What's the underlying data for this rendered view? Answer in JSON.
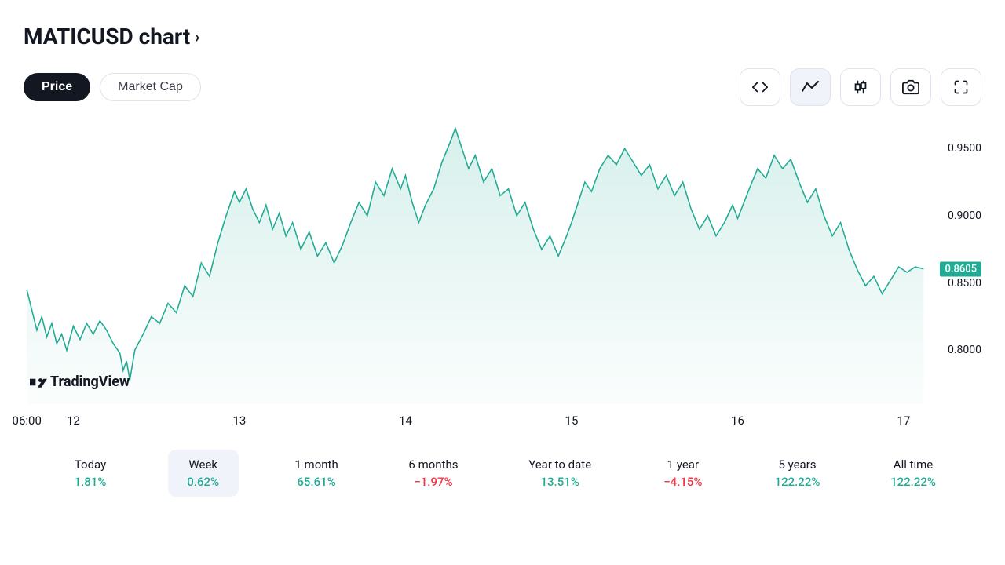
{
  "title": "MATICUSD chart",
  "tabs": {
    "price": "Price",
    "marketcap": "Market Cap"
  },
  "toolbar_icons": [
    "code-icon",
    "area-chart-icon",
    "candlestick-icon",
    "camera-icon",
    "fullscreen-icon"
  ],
  "chart": {
    "type": "area",
    "line_color": "#22ab94",
    "line_width": 1.5,
    "fill_top": "rgba(34,171,148,0.18)",
    "fill_bottom": "rgba(34,171,148,0.02)",
    "background": "#ffffff",
    "xlim": [
      0,
      5.4
    ],
    "ylim": [
      0.76,
      0.97
    ],
    "y_ticks": [
      {
        "v": 0.95,
        "label": "0.9500"
      },
      {
        "v": 0.9,
        "label": "0.9000"
      },
      {
        "v": 0.85,
        "label": "0.8500"
      },
      {
        "v": 0.8,
        "label": "0.8000"
      }
    ],
    "x_ticks": [
      {
        "v": 0.0,
        "label": "06:00"
      },
      {
        "v": 0.28,
        "label": "12"
      },
      {
        "v": 1.28,
        "label": "13"
      },
      {
        "v": 2.28,
        "label": "14"
      },
      {
        "v": 3.28,
        "label": "15"
      },
      {
        "v": 4.28,
        "label": "16"
      },
      {
        "v": 5.28,
        "label": "17"
      }
    ],
    "current_price": 0.8605,
    "current_price_label": "0.8605",
    "series": [
      [
        0.0,
        0.845
      ],
      [
        0.03,
        0.83
      ],
      [
        0.06,
        0.815
      ],
      [
        0.09,
        0.825
      ],
      [
        0.12,
        0.81
      ],
      [
        0.15,
        0.82
      ],
      [
        0.18,
        0.805
      ],
      [
        0.21,
        0.812
      ],
      [
        0.24,
        0.8
      ],
      [
        0.28,
        0.818
      ],
      [
        0.32,
        0.808
      ],
      [
        0.36,
        0.82
      ],
      [
        0.4,
        0.812
      ],
      [
        0.44,
        0.822
      ],
      [
        0.48,
        0.815
      ],
      [
        0.52,
        0.805
      ],
      [
        0.56,
        0.798
      ],
      [
        0.58,
        0.785
      ],
      [
        0.6,
        0.792
      ],
      [
        0.62,
        0.778
      ],
      [
        0.65,
        0.8
      ],
      [
        0.7,
        0.812
      ],
      [
        0.75,
        0.825
      ],
      [
        0.8,
        0.82
      ],
      [
        0.85,
        0.835
      ],
      [
        0.9,
        0.828
      ],
      [
        0.95,
        0.848
      ],
      [
        1.0,
        0.84
      ],
      [
        1.05,
        0.865
      ],
      [
        1.1,
        0.855
      ],
      [
        1.15,
        0.88
      ],
      [
        1.2,
        0.9
      ],
      [
        1.25,
        0.918
      ],
      [
        1.28,
        0.91
      ],
      [
        1.32,
        0.92
      ],
      [
        1.36,
        0.905
      ],
      [
        1.4,
        0.895
      ],
      [
        1.44,
        0.908
      ],
      [
        1.48,
        0.89
      ],
      [
        1.52,
        0.902
      ],
      [
        1.56,
        0.885
      ],
      [
        1.6,
        0.895
      ],
      [
        1.65,
        0.875
      ],
      [
        1.7,
        0.888
      ],
      [
        1.75,
        0.87
      ],
      [
        1.8,
        0.88
      ],
      [
        1.85,
        0.865
      ],
      [
        1.9,
        0.878
      ],
      [
        1.95,
        0.895
      ],
      [
        2.0,
        0.91
      ],
      [
        2.05,
        0.9
      ],
      [
        2.1,
        0.925
      ],
      [
        2.15,
        0.915
      ],
      [
        2.2,
        0.935
      ],
      [
        2.25,
        0.92
      ],
      [
        2.28,
        0.93
      ],
      [
        2.32,
        0.91
      ],
      [
        2.36,
        0.895
      ],
      [
        2.4,
        0.908
      ],
      [
        2.45,
        0.92
      ],
      [
        2.5,
        0.94
      ],
      [
        2.55,
        0.955
      ],
      [
        2.58,
        0.965
      ],
      [
        2.62,
        0.95
      ],
      [
        2.66,
        0.935
      ],
      [
        2.7,
        0.945
      ],
      [
        2.75,
        0.925
      ],
      [
        2.8,
        0.935
      ],
      [
        2.85,
        0.915
      ],
      [
        2.9,
        0.92
      ],
      [
        2.95,
        0.9
      ],
      [
        3.0,
        0.91
      ],
      [
        3.05,
        0.89
      ],
      [
        3.1,
        0.875
      ],
      [
        3.15,
        0.885
      ],
      [
        3.2,
        0.87
      ],
      [
        3.25,
        0.885
      ],
      [
        3.28,
        0.895
      ],
      [
        3.32,
        0.91
      ],
      [
        3.36,
        0.925
      ],
      [
        3.4,
        0.918
      ],
      [
        3.45,
        0.935
      ],
      [
        3.5,
        0.945
      ],
      [
        3.55,
        0.938
      ],
      [
        3.6,
        0.95
      ],
      [
        3.65,
        0.94
      ],
      [
        3.7,
        0.93
      ],
      [
        3.75,
        0.938
      ],
      [
        3.8,
        0.92
      ],
      [
        3.85,
        0.93
      ],
      [
        3.9,
        0.915
      ],
      [
        3.95,
        0.925
      ],
      [
        4.0,
        0.905
      ],
      [
        4.05,
        0.89
      ],
      [
        4.1,
        0.9
      ],
      [
        4.15,
        0.885
      ],
      [
        4.2,
        0.895
      ],
      [
        4.25,
        0.908
      ],
      [
        4.28,
        0.898
      ],
      [
        4.35,
        0.92
      ],
      [
        4.4,
        0.935
      ],
      [
        4.45,
        0.928
      ],
      [
        4.5,
        0.945
      ],
      [
        4.55,
        0.935
      ],
      [
        4.6,
        0.942
      ],
      [
        4.65,
        0.925
      ],
      [
        4.7,
        0.91
      ],
      [
        4.75,
        0.92
      ],
      [
        4.8,
        0.9
      ],
      [
        4.85,
        0.885
      ],
      [
        4.9,
        0.895
      ],
      [
        4.95,
        0.875
      ],
      [
        5.0,
        0.86
      ],
      [
        5.05,
        0.848
      ],
      [
        5.1,
        0.855
      ],
      [
        5.15,
        0.842
      ],
      [
        5.2,
        0.852
      ],
      [
        5.25,
        0.862
      ],
      [
        5.3,
        0.858
      ],
      [
        5.35,
        0.862
      ],
      [
        5.4,
        0.8605
      ]
    ]
  },
  "periods": [
    {
      "label": "Today",
      "val": "1.81%",
      "cls": "pos",
      "active": false
    },
    {
      "label": "Week",
      "val": "0.62%",
      "cls": "pos",
      "active": true
    },
    {
      "label": "1 month",
      "val": "65.61%",
      "cls": "pos",
      "active": false
    },
    {
      "label": "6 months",
      "val": "−1.97%",
      "cls": "neg",
      "active": false
    },
    {
      "label": "Year to date",
      "val": "13.51%",
      "cls": "pos",
      "active": false
    },
    {
      "label": "1 year",
      "val": "−4.15%",
      "cls": "neg",
      "active": false
    },
    {
      "label": "5 years",
      "val": "122.22%",
      "cls": "pos",
      "active": false
    },
    {
      "label": "All time",
      "val": "122.22%",
      "cls": "pos",
      "active": false
    }
  ],
  "watermark": "TradingView"
}
